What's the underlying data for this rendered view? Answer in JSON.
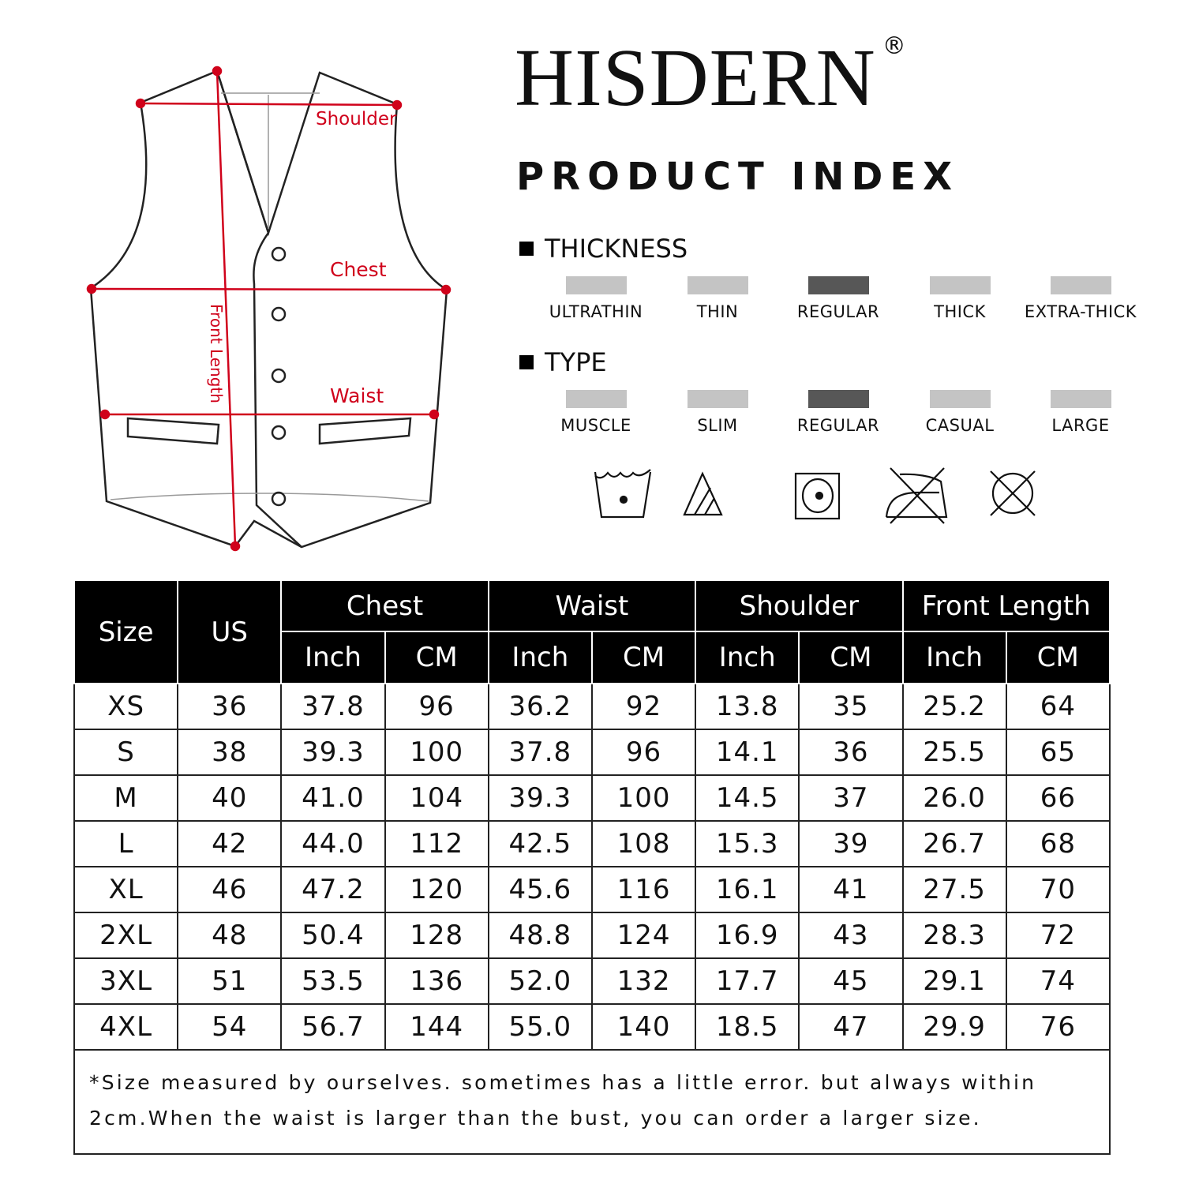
{
  "brand": {
    "name": "HISDERN",
    "registered": "®",
    "subtitle": "PRODUCT INDEX"
  },
  "diagram": {
    "labels": {
      "shoulder": "Shoulder",
      "chest": "Chest",
      "waist": "Waist",
      "front_length": "Front Length"
    },
    "measure_color": "#d0021b"
  },
  "thickness": {
    "title": "THICKNESS",
    "options": [
      "ULTRATHIN",
      "THIN",
      "REGULAR",
      "THICK",
      "EXTRA-THICK"
    ],
    "selected": "REGULAR"
  },
  "type": {
    "title": "TYPE",
    "options": [
      "MUSCLE",
      "SLIM",
      "REGULAR",
      "CASUAL",
      "LARGE"
    ],
    "selected": "REGULAR"
  },
  "care_icons": [
    "hand-wash-icon",
    "no-chlorine-bleach-icon",
    "tumble-dry-icon",
    "do-not-iron-icon",
    "do-not-dry-clean-icon"
  ],
  "table": {
    "headers": {
      "size": "Size",
      "us": "US",
      "groups": [
        "Chest",
        "Waist",
        "Shoulder",
        "Front Length"
      ],
      "units": [
        "Inch",
        "CM"
      ]
    },
    "rows": [
      [
        "XS",
        "36",
        "37.8",
        "96",
        "36.2",
        "92",
        "13.8",
        "35",
        "25.2",
        "64"
      ],
      [
        "S",
        "38",
        "39.3",
        "100",
        "37.8",
        "96",
        "14.1",
        "36",
        "25.5",
        "65"
      ],
      [
        "M",
        "40",
        "41.0",
        "104",
        "39.3",
        "100",
        "14.5",
        "37",
        "26.0",
        "66"
      ],
      [
        "L",
        "42",
        "44.0",
        "112",
        "42.5",
        "108",
        "15.3",
        "39",
        "26.7",
        "68"
      ],
      [
        "XL",
        "46",
        "47.2",
        "120",
        "45.6",
        "116",
        "16.1",
        "41",
        "27.5",
        "70"
      ],
      [
        "2XL",
        "48",
        "50.4",
        "128",
        "48.8",
        "124",
        "16.9",
        "43",
        "28.3",
        "72"
      ],
      [
        "3XL",
        "51",
        "53.5",
        "136",
        "52.0",
        "132",
        "17.7",
        "45",
        "29.1",
        "74"
      ],
      [
        "4XL",
        "54",
        "56.7",
        "144",
        "55.0",
        "140",
        "18.5",
        "47",
        "29.9",
        "76"
      ]
    ],
    "note": "*Size measured by ourselves. sometimes has a little error. but always within 2cm.When the waist is larger than the bust, you can order a larger size."
  }
}
